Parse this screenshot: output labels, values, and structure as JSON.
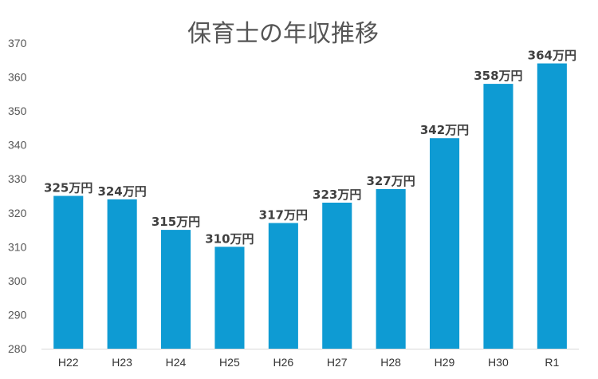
{
  "chart_data": {
    "type": "bar",
    "title": "保育士の年収推移",
    "categories": [
      "H22",
      "H23",
      "H24",
      "H25",
      "H26",
      "H27",
      "H28",
      "H29",
      "H30",
      "R1"
    ],
    "values": [
      325,
      324,
      315,
      310,
      317,
      323,
      327,
      342,
      358,
      364
    ],
    "data_labels": [
      "325万円",
      "324万円",
      "315万円",
      "310万円",
      "317万円",
      "323万円",
      "327万円",
      "342万円",
      "358万円",
      "364万円"
    ],
    "ylim": [
      280,
      370
    ],
    "yticks": [
      280,
      290,
      300,
      310,
      320,
      330,
      340,
      350,
      360,
      370
    ],
    "xlabel": "",
    "ylabel": "",
    "grid": false,
    "bar_color": "#0E9BD3",
    "axis_color": "#D9D9D9"
  }
}
